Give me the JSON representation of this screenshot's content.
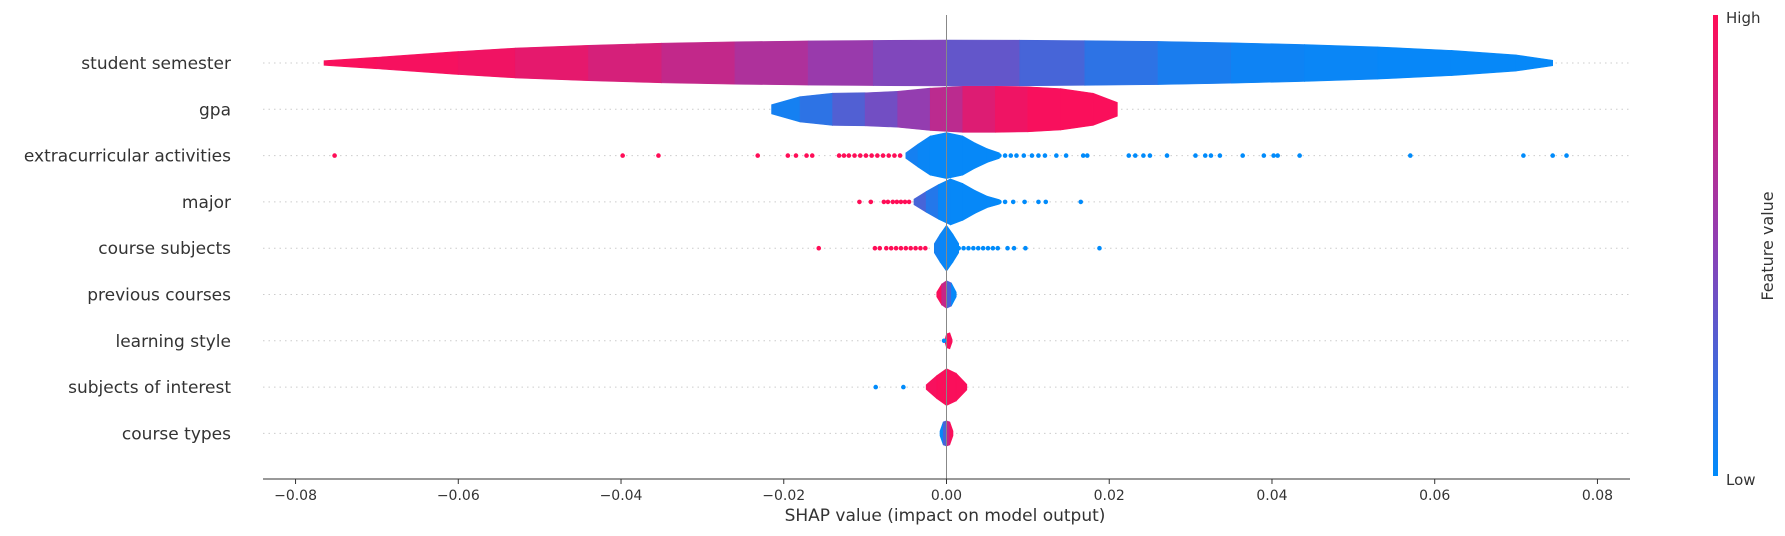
{
  "chart_data": {
    "type": "violin",
    "title": "",
    "xlabel": "SHAP value (impact on model output)",
    "ylabel": "",
    "xlim": [
      -0.084,
      0.084
    ],
    "xticks": [
      -0.08,
      -0.06,
      -0.04,
      -0.02,
      0.0,
      0.02,
      0.04,
      0.06,
      0.08
    ],
    "xtick_labels": [
      "−0.08",
      "−0.06",
      "−0.04",
      "−0.02",
      "0.00",
      "0.02",
      "0.04",
      "0.06",
      "0.08"
    ],
    "colorbar": {
      "label": "Feature value",
      "high": "High",
      "low": "Low",
      "high_color": "#ff0d57",
      "mid_color": "#8e3fb5",
      "low_color": "#008bfb"
    },
    "features": [
      {
        "name": "student semester",
        "violin": [
          {
            "x": -0.0765,
            "w": 0.1,
            "v": 0.98
          },
          {
            "x": -0.07,
            "w": 0.25,
            "v": 0.97
          },
          {
            "x": -0.06,
            "w": 0.5,
            "v": 0.95
          },
          {
            "x": -0.053,
            "w": 0.65,
            "v": 0.92
          },
          {
            "x": -0.044,
            "w": 0.77,
            "v": 0.85
          },
          {
            "x": -0.035,
            "w": 0.86,
            "v": 0.78
          },
          {
            "x": -0.026,
            "w": 0.92,
            "v": 0.68
          },
          {
            "x": -0.017,
            "w": 0.96,
            "v": 0.6
          },
          {
            "x": -0.009,
            "w": 0.98,
            "v": 0.5
          },
          {
            "x": 0.0,
            "w": 1.0,
            "v": 0.4
          },
          {
            "x": 0.009,
            "w": 0.99,
            "v": 0.3
          },
          {
            "x": 0.017,
            "w": 0.97,
            "v": 0.2
          },
          {
            "x": 0.026,
            "w": 0.94,
            "v": 0.12
          },
          {
            "x": 0.035,
            "w": 0.88,
            "v": 0.06
          },
          {
            "x": 0.044,
            "w": 0.8,
            "v": 0.04
          },
          {
            "x": 0.053,
            "w": 0.7,
            "v": 0.03
          },
          {
            "x": 0.062,
            "w": 0.55,
            "v": 0.02
          },
          {
            "x": 0.07,
            "w": 0.35,
            "v": 0.02
          },
          {
            "x": 0.0745,
            "w": 0.12,
            "v": 0.02
          }
        ],
        "points": []
      },
      {
        "name": "gpa",
        "violin": [
          {
            "x": -0.0215,
            "w": 0.2,
            "v": 0.05
          },
          {
            "x": -0.018,
            "w": 0.55,
            "v": 0.1
          },
          {
            "x": -0.014,
            "w": 0.7,
            "v": 0.22
          },
          {
            "x": -0.01,
            "w": 0.72,
            "v": 0.35
          },
          {
            "x": -0.006,
            "w": 0.78,
            "v": 0.45
          },
          {
            "x": -0.002,
            "w": 0.92,
            "v": 0.6
          },
          {
            "x": 0.002,
            "w": 1.0,
            "v": 0.8
          },
          {
            "x": 0.006,
            "w": 1.0,
            "v": 0.9
          },
          {
            "x": 0.01,
            "w": 0.98,
            "v": 0.96
          },
          {
            "x": 0.014,
            "w": 0.9,
            "v": 0.98
          },
          {
            "x": 0.018,
            "w": 0.7,
            "v": 0.98
          },
          {
            "x": 0.021,
            "w": 0.3,
            "v": 0.98
          }
        ],
        "points": []
      },
      {
        "name": "extracurricular activities",
        "violin": [
          {
            "x": -0.005,
            "w": 0.12,
            "v": 0.1
          },
          {
            "x": -0.0035,
            "w": 0.5,
            "v": 0.05
          },
          {
            "x": -0.002,
            "w": 0.85,
            "v": 0.02
          },
          {
            "x": 0.0,
            "w": 1.0,
            "v": 0.02
          },
          {
            "x": 0.002,
            "w": 0.85,
            "v": 0.02
          },
          {
            "x": 0.0035,
            "w": 0.55,
            "v": 0.02
          },
          {
            "x": 0.005,
            "w": 0.3,
            "v": 0.02
          },
          {
            "x": 0.0065,
            "w": 0.12,
            "v": 0.02
          }
        ],
        "points": [
          {
            "x": -0.0752,
            "v": 1
          },
          {
            "x": -0.0398,
            "v": 1
          },
          {
            "x": -0.0354,
            "v": 1
          },
          {
            "x": -0.0232,
            "v": 1
          },
          {
            "x": -0.0195,
            "v": 1
          },
          {
            "x": -0.0185,
            "v": 1
          },
          {
            "x": -0.0172,
            "v": 1
          },
          {
            "x": -0.0165,
            "v": 1
          },
          {
            "x": -0.0132,
            "v": 1
          },
          {
            "x": -0.0126,
            "v": 1
          },
          {
            "x": -0.012,
            "v": 1
          },
          {
            "x": -0.0113,
            "v": 1
          },
          {
            "x": -0.0106,
            "v": 1
          },
          {
            "x": -0.0099,
            "v": 1
          },
          {
            "x": -0.0092,
            "v": 1
          },
          {
            "x": -0.0085,
            "v": 1
          },
          {
            "x": -0.0078,
            "v": 1
          },
          {
            "x": -0.0071,
            "v": 1
          },
          {
            "x": -0.0064,
            "v": 1
          },
          {
            "x": -0.0057,
            "v": 1
          },
          {
            "x": 0.0065,
            "v": 0
          },
          {
            "x": 0.0072,
            "v": 0
          },
          {
            "x": 0.0079,
            "v": 0
          },
          {
            "x": 0.0086,
            "v": 0
          },
          {
            "x": 0.0095,
            "v": 0
          },
          {
            "x": 0.0105,
            "v": 0
          },
          {
            "x": 0.0113,
            "v": 0
          },
          {
            "x": 0.0121,
            "v": 0
          },
          {
            "x": 0.0135,
            "v": 0
          },
          {
            "x": 0.0147,
            "v": 0
          },
          {
            "x": 0.0168,
            "v": 0
          },
          {
            "x": 0.0173,
            "v": 0
          },
          {
            "x": 0.0224,
            "v": 0
          },
          {
            "x": 0.0232,
            "v": 0
          },
          {
            "x": 0.0242,
            "v": 0
          },
          {
            "x": 0.025,
            "v": 0
          },
          {
            "x": 0.0271,
            "v": 0
          },
          {
            "x": 0.0306,
            "v": 0
          },
          {
            "x": 0.0318,
            "v": 0
          },
          {
            "x": 0.0325,
            "v": 0
          },
          {
            "x": 0.0336,
            "v": 0
          },
          {
            "x": 0.0364,
            "v": 0
          },
          {
            "x": 0.039,
            "v": 0
          },
          {
            "x": 0.0402,
            "v": 0
          },
          {
            "x": 0.0407,
            "v": 0
          },
          {
            "x": 0.0434,
            "v": 0
          },
          {
            "x": 0.057,
            "v": 0
          },
          {
            "x": 0.0709,
            "v": 0
          },
          {
            "x": 0.0745,
            "v": 0
          },
          {
            "x": 0.0762,
            "v": 0
          }
        ]
      },
      {
        "name": "major",
        "violin": [
          {
            "x": -0.004,
            "w": 0.12,
            "v": 0.3
          },
          {
            "x": -0.0025,
            "w": 0.45,
            "v": 0.2
          },
          {
            "x": -0.001,
            "w": 0.75,
            "v": 0.05
          },
          {
            "x": 0.0005,
            "w": 1.0,
            "v": 0.02
          },
          {
            "x": 0.002,
            "w": 0.8,
            "v": 0.02
          },
          {
            "x": 0.0035,
            "w": 0.5,
            "v": 0.02
          },
          {
            "x": 0.005,
            "w": 0.25,
            "v": 0.02
          },
          {
            "x": 0.0065,
            "w": 0.1,
            "v": 0.02
          }
        ],
        "points": [
          {
            "x": -0.0107,
            "v": 1
          },
          {
            "x": -0.0093,
            "v": 1
          },
          {
            "x": -0.0077,
            "v": 1
          },
          {
            "x": -0.0072,
            "v": 1
          },
          {
            "x": -0.0066,
            "v": 1
          },
          {
            "x": -0.0061,
            "v": 1
          },
          {
            "x": -0.0056,
            "v": 1
          },
          {
            "x": -0.0051,
            "v": 1
          },
          {
            "x": -0.0046,
            "v": 1
          },
          {
            "x": 0.0065,
            "v": 0
          },
          {
            "x": 0.0072,
            "v": 0
          },
          {
            "x": 0.0082,
            "v": 0
          },
          {
            "x": 0.0096,
            "v": 0
          },
          {
            "x": 0.0113,
            "v": 0
          },
          {
            "x": 0.0122,
            "v": 0
          },
          {
            "x": 0.0165,
            "v": 0
          }
        ]
      },
      {
        "name": "course subjects",
        "violin": [
          {
            "x": -0.0015,
            "w": 0.2,
            "v": 0.1
          },
          {
            "x": -0.0008,
            "w": 0.6,
            "v": 0.05
          },
          {
            "x": 0.0,
            "w": 1.0,
            "v": 0.02
          },
          {
            "x": 0.0008,
            "w": 0.6,
            "v": 0.02
          },
          {
            "x": 0.0015,
            "w": 0.2,
            "v": 0.02
          }
        ],
        "points": [
          {
            "x": -0.0157,
            "v": 1
          },
          {
            "x": -0.0088,
            "v": 1
          },
          {
            "x": -0.0082,
            "v": 1
          },
          {
            "x": -0.0074,
            "v": 1
          },
          {
            "x": -0.0068,
            "v": 1
          },
          {
            "x": -0.0062,
            "v": 1
          },
          {
            "x": -0.0056,
            "v": 1
          },
          {
            "x": -0.005,
            "v": 1
          },
          {
            "x": -0.0044,
            "v": 1
          },
          {
            "x": -0.0038,
            "v": 1
          },
          {
            "x": -0.0032,
            "v": 1
          },
          {
            "x": -0.0026,
            "v": 1
          },
          {
            "x": 0.0015,
            "v": 0
          },
          {
            "x": 0.0021,
            "v": 0
          },
          {
            "x": 0.0027,
            "v": 0
          },
          {
            "x": 0.0033,
            "v": 0
          },
          {
            "x": 0.0039,
            "v": 0
          },
          {
            "x": 0.0045,
            "v": 0
          },
          {
            "x": 0.0051,
            "v": 0
          },
          {
            "x": 0.0057,
            "v": 0
          },
          {
            "x": 0.0063,
            "v": 0
          },
          {
            "x": 0.0075,
            "v": 0
          },
          {
            "x": 0.0083,
            "v": 0
          },
          {
            "x": 0.0097,
            "v": 0
          },
          {
            "x": 0.0188,
            "v": 0
          }
        ]
      },
      {
        "name": "previous courses",
        "split": true,
        "violin": [
          {
            "x": -0.0012,
            "w": 0.1,
            "v": 0.98
          },
          {
            "x": -0.0006,
            "w": 0.45,
            "v": 0.98
          },
          {
            "x": 0.0,
            "w": 0.6,
            "v": 0.5
          },
          {
            "x": 0.0006,
            "w": 0.5,
            "v": 0.02
          },
          {
            "x": 0.0012,
            "w": 0.1,
            "v": 0.02
          }
        ],
        "points": []
      },
      {
        "name": "learning style",
        "violin": [
          {
            "x": -0.0002,
            "w": 0.05,
            "v": 0.9
          },
          {
            "x": 0.0,
            "w": 0.3,
            "v": 0.95
          },
          {
            "x": 0.0004,
            "w": 0.35,
            "v": 0.98
          },
          {
            "x": 0.0007,
            "w": 0.05,
            "v": 0.98
          }
        ],
        "points": [
          {
            "x": -0.0003,
            "v": 0
          }
        ]
      },
      {
        "name": "subjects of interest",
        "violin": [
          {
            "x": -0.0025,
            "w": 0.1,
            "v": 0.95
          },
          {
            "x": -0.0012,
            "w": 0.5,
            "v": 0.98
          },
          {
            "x": 0.0,
            "w": 0.8,
            "v": 0.98
          },
          {
            "x": 0.0012,
            "w": 0.6,
            "v": 0.98
          },
          {
            "x": 0.0025,
            "w": 0.12,
            "v": 0.98
          }
        ],
        "points": [
          {
            "x": -0.0087,
            "v": 0
          },
          {
            "x": -0.0053,
            "v": 0
          }
        ]
      },
      {
        "name": "course types",
        "split": true,
        "violin": [
          {
            "x": -0.0008,
            "w": 0.1,
            "v": 0.02
          },
          {
            "x": -0.0004,
            "w": 0.5,
            "v": 0.02
          },
          {
            "x": 0.0,
            "w": 0.55,
            "v": 0.5
          },
          {
            "x": 0.0004,
            "w": 0.5,
            "v": 0.98
          },
          {
            "x": 0.0008,
            "w": 0.1,
            "v": 0.98
          }
        ],
        "points": []
      }
    ]
  }
}
